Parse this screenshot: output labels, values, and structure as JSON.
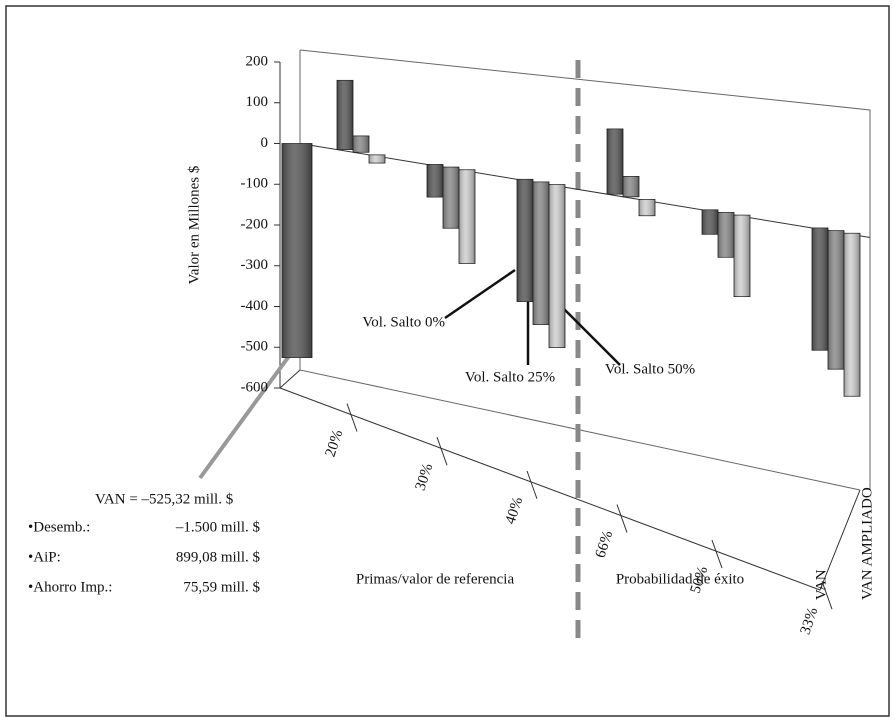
{
  "chart_data": {
    "type": "bar3d",
    "y_label": "Valor en Millones $",
    "ylim": [
      -600,
      200
    ],
    "yticks": [
      -600,
      -500,
      -400,
      -300,
      -200,
      -100,
      0,
      100,
      200
    ],
    "categories": [
      "20%",
      "30%",
      "40%",
      "66%",
      "50%",
      "33%"
    ],
    "group_labels": [
      "Primas/valor de referencia",
      "Probabilidad de éxito"
    ],
    "depth_categories": [
      "VAN",
      "VAN AMPLIADO"
    ],
    "van_value": -525.32,
    "van_color": "#5a5a5a",
    "series": [
      {
        "name": "Vol. Salto 0%",
        "color": "#5a5a5a",
        "values": [
          170,
          -80,
          -300,
          160,
          -60,
          -300
        ]
      },
      {
        "name": "Vol. Salto 25%",
        "color": "#8c8c8c",
        "values": [
          40,
          -150,
          -350,
          50,
          -110,
          -340
        ]
      },
      {
        "name": "Vol. Salto 50%",
        "color": "#d0d0d0",
        "values": [
          -20,
          -230,
          -400,
          -40,
          -200,
          -400
        ]
      }
    ],
    "note_title": "VAN = –525,32 mill. $",
    "note_items": [
      {
        "label": "•Desemb.:",
        "value": "–1.500 mill. $"
      },
      {
        "label": "•AiP:",
        "value": "899,08 mill. $"
      },
      {
        "label": "•Ahorro Imp.:",
        "value": "75,59 mill. $"
      }
    ]
  }
}
